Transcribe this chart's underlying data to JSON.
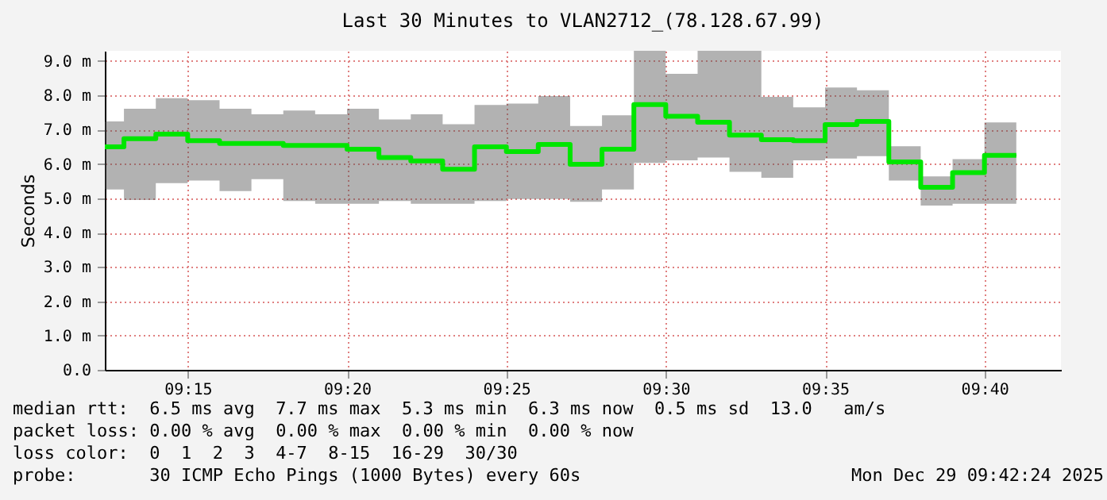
{
  "chart_data": {
    "type": "step",
    "title": "Last 30 Minutes to VLAN2712_(78.128.67.99)",
    "ylabel": "Seconds",
    "x": [
      9.2066667,
      9.2166667,
      9.2333333,
      9.25,
      9.2666667,
      9.2833333,
      9.3,
      9.3166667,
      9.3333333,
      9.35,
      9.3666667,
      9.3833333,
      9.4,
      9.4166667,
      9.4333333,
      9.45,
      9.4666667,
      9.4833333,
      9.5,
      9.5166667,
      9.5333333,
      9.55,
      9.5666667,
      9.5833333,
      9.6,
      9.6166667,
      9.6333333,
      9.65,
      9.6666667,
      9.6833333
    ],
    "series": [
      {
        "color": "#00e600",
        "values": [
          6.5,
          6.74,
          6.87,
          6.68,
          6.6,
          6.6,
          6.54,
          6.54,
          6.43,
          6.19,
          6.09,
          5.85,
          6.5,
          6.36,
          6.57,
          5.99,
          6.43,
          7.73,
          7.39,
          7.22,
          6.84,
          6.71,
          6.68,
          7.15,
          7.24,
          6.06,
          5.32,
          5.75,
          6.25,
          6.25
        ],
        "lower": [
          5.26,
          4.95,
          5.44,
          5.52,
          5.21,
          5.56,
          4.92,
          4.84,
          4.84,
          4.92,
          4.84,
          4.84,
          4.92,
          4.98,
          4.98,
          4.9,
          5.26,
          6.03,
          6.11,
          6.19,
          5.77,
          5.6,
          6.11,
          6.16,
          6.23,
          5.52,
          4.79,
          4.84,
          4.84,
          4.84
        ],
        "upper": [
          7.24,
          7.61,
          7.92,
          7.86,
          7.61,
          7.45,
          7.56,
          7.45,
          7.61,
          7.3,
          7.45,
          7.16,
          7.72,
          7.76,
          7.98,
          7.11,
          7.42,
          9.3,
          8.63,
          9.3,
          9.3,
          7.96,
          7.65,
          8.23,
          8.15,
          6.52,
          5.64,
          6.14,
          7.21,
          7.21
        ]
      }
    ],
    "xlim": [
      9.2066667,
      9.7066667
    ],
    "xticks": [
      {
        "value": 9.25,
        "label": "09:15"
      },
      {
        "value": 9.3333333,
        "label": "09:20"
      },
      {
        "value": 9.4166667,
        "label": "09:25"
      },
      {
        "value": 9.5,
        "label": "09:30"
      },
      {
        "value": 9.5833333,
        "label": "09:35"
      },
      {
        "value": 9.6666667,
        "label": "09:40"
      }
    ],
    "ylim": [
      0,
      9.3
    ],
    "yticks": [
      {
        "value": 0,
        "label": "0.0"
      },
      {
        "value": 1,
        "label": "1.0 m"
      },
      {
        "value": 2,
        "label": "2.0 m"
      },
      {
        "value": 3,
        "label": "3.0 m"
      },
      {
        "value": 4,
        "label": "4.0 m"
      },
      {
        "value": 5,
        "label": "5.0 m"
      },
      {
        "value": 6,
        "label": "6.0 m"
      },
      {
        "value": 7,
        "label": "7.0 m"
      },
      {
        "value": 8,
        "label": "8.0 m"
      },
      {
        "value": 9,
        "label": "9.0 m"
      }
    ],
    "grid": true,
    "annotations": [
      "median rtt:  6.5 ms avg  7.7 ms max  5.3 ms min  6.3 ms now  0.5 ms sd  13.0   am/s",
      "packet loss: 0.00 % avg  0.00 % max  0.00 % min  0.00 % now",
      "loss color:  0  1  2  3  4-7  8-15  16-29  30/30",
      "probe:       30 ICMP Echo Pings (1000 Bytes) every 60s",
      "Mon Dec 29 09:42:24 2025"
    ]
  }
}
